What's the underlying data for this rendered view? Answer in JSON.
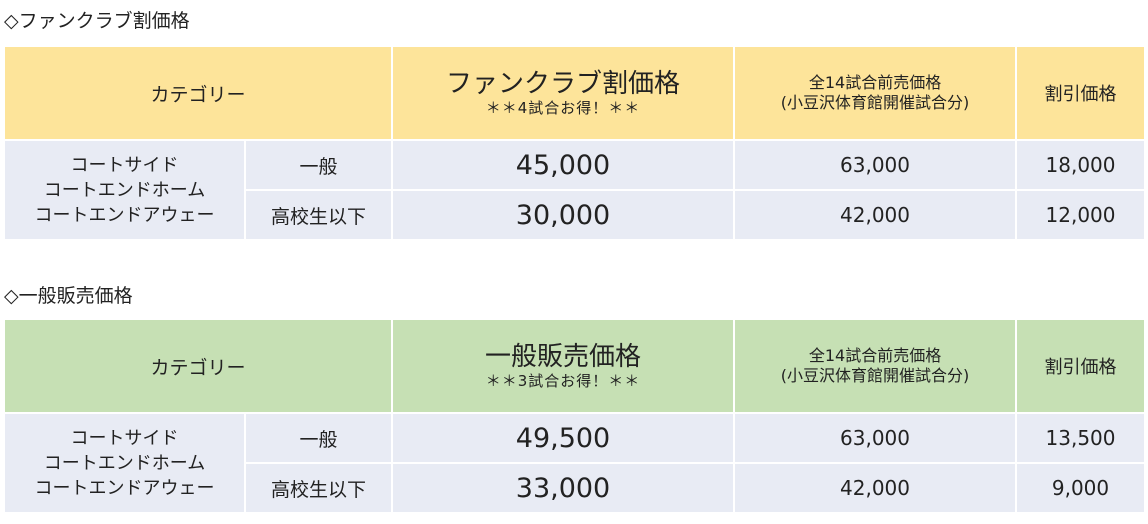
{
  "fanclub": {
    "section_title": "◇ファンクラブ割価格",
    "header": {
      "category": "カテゴリー",
      "main_price": "ファンクラブ割価格",
      "main_note": "＊＊4試合お得！＊＊",
      "presale_line1": "全14試合前売価格",
      "presale_line2": "(小豆沢体育館開催試合分)",
      "discount": "割引価格"
    },
    "seat_names": [
      "コートサイド",
      "コートエンドホーム",
      "コートエンドアウェー"
    ],
    "rows": [
      {
        "type": "一般",
        "price": "45,000",
        "presale": "63,000",
        "discount": "18,000"
      },
      {
        "type": "高校生以下",
        "price": "30,000",
        "presale": "42,000",
        "discount": "12,000"
      }
    ]
  },
  "general": {
    "section_title": "◇一般販売価格",
    "header": {
      "category": "カテゴリー",
      "main_price": "一般販売価格",
      "main_note": "＊＊3試合お得！＊＊",
      "presale_line1": "全14試合前売価格",
      "presale_line2": "(小豆沢体育館開催試合分)",
      "discount": "割引価格"
    },
    "seat_names": [
      "コートサイド",
      "コートエンドホーム",
      "コートエンドアウェー"
    ],
    "rows": [
      {
        "type": "一般",
        "price": "49,500",
        "presale": "63,000",
        "discount": "13,500"
      },
      {
        "type": "高校生以下",
        "price": "33,000",
        "presale": "42,000",
        "discount": "9,000"
      }
    ]
  }
}
